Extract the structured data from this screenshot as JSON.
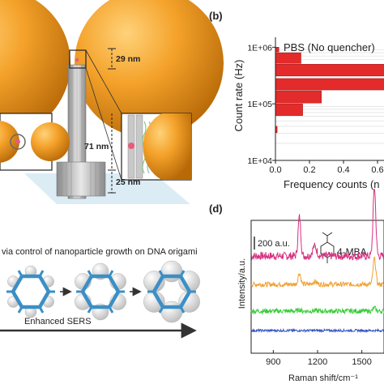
{
  "panel_b": {
    "label": "(b)",
    "legend": "PBS (No quencher)",
    "ylabel": "Count rate (Hz)",
    "xlabel": "Frequency counts (n",
    "y_ticks": [
      "1E+06",
      "1E+05",
      "1E+04"
    ],
    "x_ticks": [
      "0.0",
      "0.2",
      "0.4",
      "0.6"
    ],
    "bar_color": "#e32b2b"
  },
  "panel_d": {
    "label": "(d)",
    "scale_bar": "200 a.u.",
    "molecule": "4-MBA",
    "ylabel": "Intensity/a.u.",
    "xlabel": "Raman shift/cm⁻¹",
    "x_ticks": [
      "900",
      "1200",
      "1500"
    ],
    "series_colors": [
      "#d6307f",
      "#f0a030",
      "#3ccc3c",
      "#3050c0"
    ]
  },
  "panel_a": {
    "dim_top": "29 nm",
    "dim_mid": "71 nm",
    "dim_bottom": "25 nm"
  },
  "panel_c": {
    "caption": "via control of nanoparticle growth on DNA origami",
    "arrow_label": "Enhanced SERS"
  },
  "chart_data": [
    {
      "type": "bar",
      "orientation": "horizontal",
      "ylabel": "Count rate (Hz)",
      "xlabel": "Frequency counts (n",
      "yscale": "log",
      "ylim": [
        10000,
        1500000
      ],
      "xlim": [
        0,
        0.75
      ],
      "legend": "PBS (No quencher)",
      "bars": [
        {
          "y_low": 800000,
          "y_high": 1000000,
          "x": 0.02
        },
        {
          "y_low": 500000,
          "y_high": 800000,
          "x": 0.15
        },
        {
          "y_low": 300000,
          "y_high": 500000,
          "x": 0.75
        },
        {
          "y_low": 170000,
          "y_high": 280000,
          "x": 0.75
        },
        {
          "y_low": 100000,
          "y_high": 170000,
          "x": 0.27
        },
        {
          "y_low": 60000,
          "y_high": 100000,
          "x": 0.16
        },
        {
          "y_low": 30000,
          "y_high": 40000,
          "x": 0.01
        }
      ]
    },
    {
      "type": "line",
      "xlabel": "Raman shift/cm⁻¹",
      "ylabel": "Intensity/a.u.",
      "xlim": [
        750,
        1650
      ],
      "x_ticks": [
        900,
        1200,
        1500
      ],
      "peaks_cm": [
        1077,
        1585
      ],
      "series": [
        {
          "offset": 120,
          "peak_heights": [
            48,
            85
          ],
          "noise": 5
        },
        {
          "offset": 85,
          "peak_heights": [
            14,
            32
          ],
          "noise": 3
        },
        {
          "offset": 52,
          "peak_heights": [
            2,
            4
          ],
          "noise": 3
        },
        {
          "offset": 28,
          "peak_heights": [
            0,
            0
          ],
          "noise": 1.5
        }
      ]
    }
  ]
}
